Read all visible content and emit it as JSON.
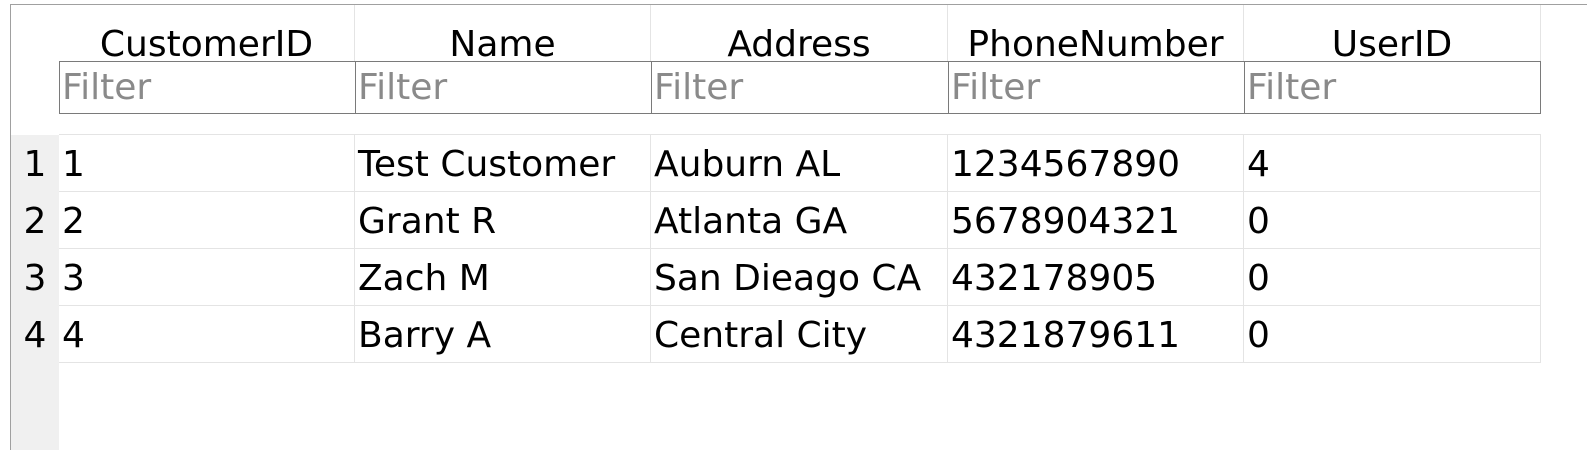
{
  "table": {
    "columns": [
      {
        "key": "customer_id",
        "label": "CustomerID"
      },
      {
        "key": "name",
        "label": "Name"
      },
      {
        "key": "address",
        "label": "Address"
      },
      {
        "key": "phone",
        "label": "PhoneNumber"
      },
      {
        "key": "user_id",
        "label": "UserID"
      }
    ],
    "filter_placeholder": "Filter",
    "rows": [
      {
        "num": "1",
        "cells": [
          "1",
          "Test Customer",
          "Auburn AL",
          "1234567890",
          "4"
        ]
      },
      {
        "num": "2",
        "cells": [
          "2",
          "Grant R",
          "Atlanta GA",
          "5678904321",
          "0"
        ]
      },
      {
        "num": "3",
        "cells": [
          "3",
          "Zach M",
          "San Dieago CA",
          "432178905",
          "0"
        ]
      },
      {
        "num": "4",
        "cells": [
          "4",
          "Barry A",
          "Central City",
          "4321879611",
          "0"
        ]
      }
    ]
  }
}
